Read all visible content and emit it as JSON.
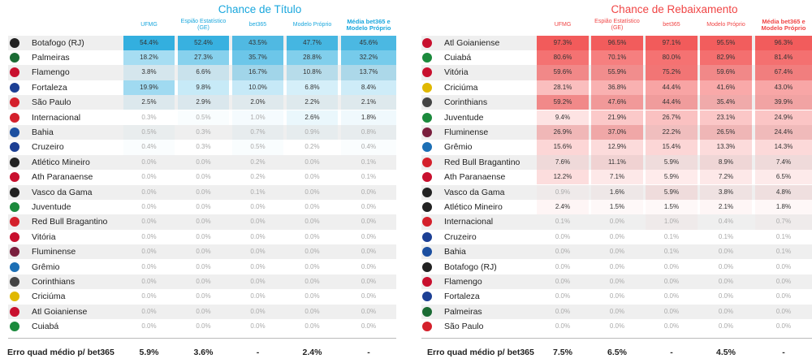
{
  "chart_data": [
    {
      "type": "table",
      "title": "Chance de Título",
      "columns": [
        "UFMG",
        "Espião Estatístico (GE)",
        "bet365",
        "Modelo Próprio",
        "Média bet365 e Modelo Próprio"
      ],
      "accent": "#1aa7dd",
      "rows": [
        {
          "team": "Botafogo (RJ)",
          "values": [
            "54.4%",
            "52.4%",
            "43.5%",
            "47.7%",
            "45.6%"
          ],
          "logo": "#222222"
        },
        {
          "team": "Palmeiras",
          "values": [
            "18.2%",
            "27.3%",
            "35.7%",
            "28.8%",
            "32.2%"
          ],
          "logo": "#1b6b34"
        },
        {
          "team": "Flamengo",
          "values": [
            "3.8%",
            "6.6%",
            "16.7%",
            "10.8%",
            "13.7%"
          ],
          "logo": "#c8102e"
        },
        {
          "team": "Fortaleza",
          "values": [
            "19.9%",
            "9.8%",
            "10.0%",
            "6.8%",
            "8.4%"
          ],
          "logo": "#1c3f94"
        },
        {
          "team": "São Paulo",
          "values": [
            "2.5%",
            "2.9%",
            "2.0%",
            "2.2%",
            "2.1%"
          ],
          "logo": "#d4202b"
        },
        {
          "team": "Internacional",
          "values": [
            "0.3%",
            "0.5%",
            "1.0%",
            "2.6%",
            "1.8%"
          ],
          "logo": "#d4202b"
        },
        {
          "team": "Bahia",
          "values": [
            "0.5%",
            "0.3%",
            "0.7%",
            "0.9%",
            "0.8%"
          ],
          "logo": "#1c4fa0"
        },
        {
          "team": "Cruzeiro",
          "values": [
            "0.4%",
            "0.3%",
            "0.5%",
            "0.2%",
            "0.4%"
          ],
          "logo": "#1c3f94"
        },
        {
          "team": "Atlético Mineiro",
          "values": [
            "0.0%",
            "0.0%",
            "0.2%",
            "0.0%",
            "0.1%"
          ],
          "logo": "#222222"
        },
        {
          "team": "Ath Paranaense",
          "values": [
            "0.0%",
            "0.0%",
            "0.2%",
            "0.0%",
            "0.1%"
          ],
          "logo": "#c8102e"
        },
        {
          "team": "Vasco da Gama",
          "values": [
            "0.0%",
            "0.0%",
            "0.1%",
            "0.0%",
            "0.0%"
          ],
          "logo": "#222222"
        },
        {
          "team": "Juventude",
          "values": [
            "0.0%",
            "0.0%",
            "0.0%",
            "0.0%",
            "0.0%"
          ],
          "logo": "#1b8a3c"
        },
        {
          "team": "Red Bull Bragantino",
          "values": [
            "0.0%",
            "0.0%",
            "0.0%",
            "0.0%",
            "0.0%"
          ],
          "logo": "#d4202b"
        },
        {
          "team": "Vitória",
          "values": [
            "0.0%",
            "0.0%",
            "0.0%",
            "0.0%",
            "0.0%"
          ],
          "logo": "#c8102e"
        },
        {
          "team": "Fluminense",
          "values": [
            "0.0%",
            "0.0%",
            "0.0%",
            "0.0%",
            "0.0%"
          ],
          "logo": "#7a1f3d"
        },
        {
          "team": "Grêmio",
          "values": [
            "0.0%",
            "0.0%",
            "0.0%",
            "0.0%",
            "0.0%"
          ],
          "logo": "#1c6fb5"
        },
        {
          "team": "Corinthians",
          "values": [
            "0.0%",
            "0.0%",
            "0.0%",
            "0.0%",
            "0.0%"
          ],
          "logo": "#444444"
        },
        {
          "team": "Criciúma",
          "values": [
            "0.0%",
            "0.0%",
            "0.0%",
            "0.0%",
            "0.0%"
          ],
          "logo": "#e0b800"
        },
        {
          "team": "Atl Goianiense",
          "values": [
            "0.0%",
            "0.0%",
            "0.0%",
            "0.0%",
            "0.0%"
          ],
          "logo": "#c8102e"
        },
        {
          "team": "Cuiabá",
          "values": [
            "0.0%",
            "0.0%",
            "0.0%",
            "0.0%",
            "0.0%"
          ],
          "logo": "#1b8a3c"
        }
      ],
      "footer": {
        "label": "Erro quad médio p/ bet365",
        "values": [
          "5.9%",
          "3.6%",
          "-",
          "2.4%",
          "-"
        ]
      }
    },
    {
      "type": "table",
      "title": "Chance de Rebaixamento",
      "columns": [
        "UFMG",
        "Espião Estatístico (GE)",
        "bet365",
        "Modelo Próprio",
        "Média bet365 e Modelo Próprio"
      ],
      "accent": "#f04545",
      "rows": [
        {
          "team": "Atl Goianiense",
          "values": [
            "97.3%",
            "96.5%",
            "97.1%",
            "95.5%",
            "96.3%"
          ],
          "logo": "#c8102e"
        },
        {
          "team": "Cuiabá",
          "values": [
            "80.6%",
            "70.1%",
            "80.0%",
            "82.9%",
            "81.4%"
          ],
          "logo": "#1b8a3c"
        },
        {
          "team": "Vitória",
          "values": [
            "59.6%",
            "55.9%",
            "75.2%",
            "59.6%",
            "67.4%"
          ],
          "logo": "#c8102e"
        },
        {
          "team": "Criciúma",
          "values": [
            "28.1%",
            "36.8%",
            "44.4%",
            "41.6%",
            "43.0%"
          ],
          "logo": "#e0b800"
        },
        {
          "team": "Corinthians",
          "values": [
            "59.2%",
            "47.6%",
            "44.4%",
            "35.4%",
            "39.9%"
          ],
          "logo": "#444444"
        },
        {
          "team": "Juventude",
          "values": [
            "9.4%",
            "21.9%",
            "26.7%",
            "23.1%",
            "24.9%"
          ],
          "logo": "#1b8a3c"
        },
        {
          "team": "Fluminense",
          "values": [
            "26.9%",
            "37.0%",
            "22.2%",
            "26.5%",
            "24.4%"
          ],
          "logo": "#7a1f3d"
        },
        {
          "team": "Grêmio",
          "values": [
            "15.6%",
            "12.9%",
            "15.4%",
            "13.3%",
            "14.3%"
          ],
          "logo": "#1c6fb5"
        },
        {
          "team": "Red Bull Bragantino",
          "values": [
            "7.6%",
            "11.1%",
            "5.9%",
            "8.9%",
            "7.4%"
          ],
          "logo": "#d4202b"
        },
        {
          "team": "Ath Paranaense",
          "values": [
            "12.2%",
            "7.1%",
            "5.9%",
            "7.2%",
            "6.5%"
          ],
          "logo": "#c8102e"
        },
        {
          "team": "Vasco da Gama",
          "values": [
            "0.9%",
            "1.6%",
            "5.9%",
            "3.8%",
            "4.8%"
          ],
          "logo": "#222222"
        },
        {
          "team": "Atlético Mineiro",
          "values": [
            "2.4%",
            "1.5%",
            "1.5%",
            "2.1%",
            "1.8%"
          ],
          "logo": "#222222"
        },
        {
          "team": "Internacional",
          "values": [
            "0.1%",
            "0.0%",
            "1.0%",
            "0.4%",
            "0.7%"
          ],
          "logo": "#d4202b"
        },
        {
          "team": "Cruzeiro",
          "values": [
            "0.0%",
            "0.0%",
            "0.1%",
            "0.1%",
            "0.1%"
          ],
          "logo": "#1c3f94"
        },
        {
          "team": "Bahia",
          "values": [
            "0.0%",
            "0.0%",
            "0.1%",
            "0.0%",
            "0.1%"
          ],
          "logo": "#1c4fa0"
        },
        {
          "team": "Botafogo (RJ)",
          "values": [
            "0.0%",
            "0.0%",
            "0.0%",
            "0.0%",
            "0.0%"
          ],
          "logo": "#222222"
        },
        {
          "team": "Flamengo",
          "values": [
            "0.0%",
            "0.0%",
            "0.0%",
            "0.0%",
            "0.0%"
          ],
          "logo": "#c8102e"
        },
        {
          "team": "Fortaleza",
          "values": [
            "0.0%",
            "0.0%",
            "0.0%",
            "0.0%",
            "0.0%"
          ],
          "logo": "#1c3f94"
        },
        {
          "team": "Palmeiras",
          "values": [
            "0.0%",
            "0.0%",
            "0.0%",
            "0.0%",
            "0.0%"
          ],
          "logo": "#1b6b34"
        },
        {
          "team": "São Paulo",
          "values": [
            "0.0%",
            "0.0%",
            "0.0%",
            "0.0%",
            "0.0%"
          ],
          "logo": "#d4202b"
        }
      ],
      "footer": {
        "label": "Erro quad médio p/ bet365",
        "values": [
          "7.5%",
          "6.5%",
          "-",
          "4.5%",
          "-"
        ]
      }
    }
  ]
}
